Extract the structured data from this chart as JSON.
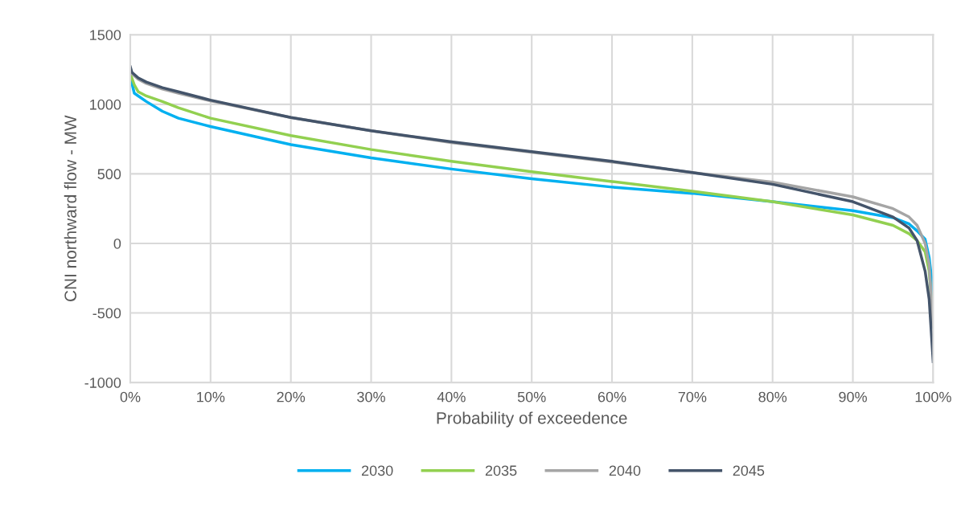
{
  "chart_data": {
    "type": "line",
    "xlabel": "Probability of exceedence",
    "ylabel": "CNI northward flow - MW",
    "xlim": [
      0,
      100
    ],
    "xticks": [
      {
        "value": 0,
        "label": "0%"
      },
      {
        "value": 10,
        "label": "10%"
      },
      {
        "value": 20,
        "label": "20%"
      },
      {
        "value": 30,
        "label": "30%"
      },
      {
        "value": 40,
        "label": "40%"
      },
      {
        "value": 50,
        "label": "50%"
      },
      {
        "value": 60,
        "label": "60%"
      },
      {
        "value": 70,
        "label": "70%"
      },
      {
        "value": 80,
        "label": "80%"
      },
      {
        "value": 90,
        "label": "90%"
      },
      {
        "value": 100,
        "label": "100%"
      }
    ],
    "ylim": [
      -1000,
      1500
    ],
    "yticks": [
      -1000,
      -500,
      0,
      500,
      1000,
      1500
    ],
    "grid": true,
    "legend": "bottom",
    "marker": "none",
    "line_style": "solid",
    "series": [
      {
        "name": "2030",
        "color": "#00b0f0",
        "x": [
          0,
          0.5,
          1,
          2,
          4,
          6,
          10,
          20,
          30,
          40,
          50,
          60,
          70,
          80,
          90,
          95,
          97,
          98,
          99,
          99.5,
          99.8,
          100
        ],
        "values": [
          1200,
          1080,
          1060,
          1020,
          950,
          900,
          840,
          710,
          615,
          535,
          465,
          405,
          360,
          300,
          235,
          185,
          140,
          90,
          30,
          -100,
          -250,
          -600
        ]
      },
      {
        "name": "2035",
        "color": "#92d050",
        "x": [
          0,
          0.5,
          1,
          2,
          4,
          6,
          10,
          20,
          30,
          40,
          50,
          60,
          70,
          80,
          90,
          95,
          97,
          98,
          99,
          99.5,
          100
        ],
        "values": [
          1220,
          1140,
          1090,
          1060,
          1020,
          975,
          900,
          775,
          675,
          590,
          515,
          445,
          375,
          300,
          205,
          130,
          70,
          20,
          -60,
          -200,
          -550
        ]
      },
      {
        "name": "2040",
        "color": "#a5a5a5",
        "x": [
          0,
          1,
          2,
          4,
          6,
          10,
          20,
          30,
          40,
          50,
          60,
          70,
          80,
          90,
          95,
          97,
          98,
          99,
          99.5,
          100
        ],
        "values": [
          1230,
          1180,
          1150,
          1110,
          1080,
          1025,
          905,
          810,
          725,
          655,
          585,
          510,
          440,
          335,
          250,
          190,
          130,
          0,
          -150,
          -600
        ]
      },
      {
        "name": "2045",
        "color": "#44546a",
        "x": [
          0,
          0.2,
          1,
          2,
          4,
          6,
          10,
          20,
          30,
          40,
          50,
          60,
          70,
          80,
          90,
          95,
          97,
          98,
          99,
          99.5,
          100
        ],
        "values": [
          1270,
          1230,
          1190,
          1160,
          1120,
          1090,
          1030,
          905,
          810,
          730,
          660,
          590,
          510,
          425,
          300,
          190,
          110,
          20,
          -200,
          -400,
          -850
        ]
      }
    ]
  }
}
